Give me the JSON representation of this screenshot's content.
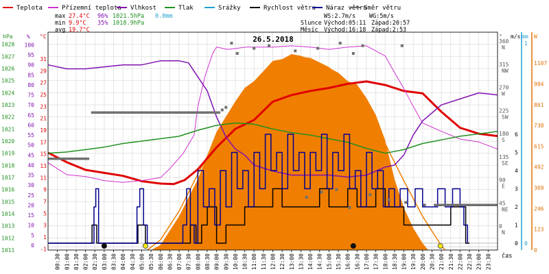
{
  "chart_data": {
    "type": "line",
    "title": "26.5.2018",
    "x_label": "čas",
    "legend": [
      {
        "label": "Teplota",
        "color": "#e00000"
      },
      {
        "label": "Přízemní teplota",
        "color": "#d030d0"
      },
      {
        "label": "Vlhkost",
        "color": "#8010b0"
      },
      {
        "label": "Tlak",
        "color": "#209020"
      },
      {
        "label": "Srážky",
        "color": "#20a0d0"
      },
      {
        "label": "Rychlost větru",
        "color": "#000000"
      },
      {
        "label": "Náraz větru",
        "color": "#000090"
      },
      {
        "label": "Směr větru",
        "color": "#707070"
      }
    ],
    "stats": [
      {
        "label": "max",
        "temp": "27.4°C",
        "hum": "96%",
        "press": "1021.5hPa",
        "rain": "0.0mm"
      },
      {
        "label": "min",
        "temp": "9.9°C",
        "hum": "35%",
        "press": "1018.9hPa",
        "rain": ""
      },
      {
        "label": "avg",
        "temp": "19.7°C",
        "hum": "",
        "press": "",
        "rain": ""
      }
    ],
    "info": {
      "ws": "WS:2.7m/s",
      "wg": "WG:5m/s",
      "sun_label": "Slunce",
      "sun_rise": "Východ:05:11",
      "sun_set": "Západ:20:57",
      "moon_label": "Měsíc",
      "moon_rise": "Východ:16:18",
      "moon_set": "Západ:2:53"
    },
    "axes": {
      "hpa": {
        "unit": "hPa",
        "color": "#209020",
        "range": [
          1011,
          1029
        ],
        "ticks": [
          1011,
          1012,
          1013,
          1014,
          1015,
          1016,
          1017,
          1018,
          1019,
          1020,
          1021,
          1022,
          1023,
          1024,
          1025,
          1026,
          1027,
          1028
        ]
      },
      "pct": {
        "unit": "%",
        "color": "#8010b0",
        "range": [
          -2.4,
          106.3
        ],
        "ticks": [
          0,
          5,
          10,
          15,
          20,
          25,
          30,
          35,
          40,
          45,
          50,
          55,
          60,
          65,
          70,
          75,
          80,
          85,
          90,
          95,
          100
        ]
      },
      "temp": {
        "unit": "°C",
        "color": "#e00000",
        "range": [
          -1.2,
          35.5
        ],
        "ticks": [
          -1,
          1,
          3,
          5,
          7,
          9,
          11,
          13,
          15,
          17,
          19,
          21,
          23,
          25,
          27,
          29,
          31
        ]
      },
      "dir": {
        "unit": "°",
        "color": "#555555",
        "ticks": [
          {
            "v": 0,
            "lab": "0",
            "dir": "N"
          },
          {
            "v": 45,
            "lab": "45",
            "dir": "NE"
          },
          {
            "v": 90,
            "lab": "90",
            "dir": "E"
          },
          {
            "v": 135,
            "lab": "135",
            "dir": "SE"
          },
          {
            "v": 180,
            "lab": "180",
            "dir": "S"
          },
          {
            "v": 225,
            "lab": "225",
            "dir": "SW"
          },
          {
            "v": 270,
            "lab": "270",
            "dir": "W"
          },
          {
            "v": 315,
            "lab": "315",
            "dir": "NW"
          },
          {
            "v": 360,
            "lab": "360",
            "dir": "N"
          }
        ]
      },
      "ms": {
        "unit": "m/s",
        "color": "#000000",
        "ticks": [
          0,
          1,
          2,
          3,
          4,
          5,
          6
        ]
      },
      "mm": {
        "unit": "mm",
        "color": "#20a0d0",
        "ticks": [
          0,
          1
        ]
      },
      "wm2": {
        "unit": "W",
        "color": "#e07000",
        "range": [
          0,
          1290
        ],
        "ticks": [
          0,
          123,
          246,
          369,
          492,
          615,
          738,
          861,
          984,
          1107
        ]
      }
    },
    "x_ticks": [
      "00:30",
      "01:00",
      "01:30",
      "02:00",
      "02:30",
      "03:00",
      "03:30",
      "04:00",
      "04:30",
      "05:00",
      "05:30",
      "06:00",
      "06:30",
      "07:00",
      "07:30",
      "08:00",
      "08:30",
      "09:00",
      "09:30",
      "10:00",
      "10:30",
      "11:00",
      "11:30",
      "12:00",
      "12:30",
      "13:00",
      "13:30",
      "14:00",
      "14:30",
      "15:00",
      "15:30",
      "16:00",
      "16:30",
      "17:00",
      "17:30",
      "18:00",
      "18:30",
      "19:00",
      "19:30",
      "20:00",
      "20:30",
      "21:00",
      "21:30",
      "22:00",
      "22:30",
      "23:00",
      "23:30"
    ],
    "series": [
      {
        "name": "Teplota",
        "axis": "temp",
        "color": "#e00000",
        "x": [
          0,
          1,
          2,
          3,
          4,
          5,
          6,
          6.7,
          7.3,
          8,
          9,
          10,
          11,
          12,
          13,
          14,
          15,
          16,
          17,
          18,
          19,
          20,
          21,
          22,
          23,
          24
        ],
        "y": [
          15.2,
          13.6,
          12.3,
          11.8,
          11.3,
          10.4,
          10.0,
          9.9,
          10.6,
          12.4,
          16.1,
          19.2,
          20.7,
          23.8,
          24.9,
          25.6,
          26.1,
          26.8,
          27.2,
          26.6,
          25.6,
          25.2,
          22.1,
          19.4,
          18.4,
          18.0
        ]
      },
      {
        "name": "Přízemní teplota",
        "axis": "temp",
        "color": "#d030d0",
        "x": [
          0,
          1,
          2,
          3,
          4,
          5,
          6,
          6.5,
          7.2,
          7.8,
          8,
          8.4,
          8.8,
          9,
          9.6,
          10.6,
          12,
          13,
          14,
          15,
          16,
          17,
          18,
          18.5,
          19,
          19.5,
          20,
          21,
          22,
          23,
          24
        ],
        "y": [
          13.5,
          11.5,
          11.2,
          10.5,
          10.2,
          10.5,
          11.0,
          12.5,
          15.0,
          18.2,
          23.0,
          28.3,
          32.0,
          33.0,
          32.6,
          33.0,
          33.0,
          33.2,
          33.0,
          32.6,
          33.0,
          33.2,
          31.5,
          28.7,
          26.0,
          23.0,
          20.2,
          18.8,
          17.5,
          17.0,
          15.8
        ]
      },
      {
        "name": "Vlhkost",
        "axis": "pct",
        "color": "#8010b0",
        "x": [
          0,
          1,
          2,
          3,
          4,
          5,
          6,
          7,
          7.5,
          8,
          8.5,
          9,
          9.5,
          10,
          10.5,
          11,
          12,
          13,
          14,
          15,
          16,
          17,
          18,
          18.5,
          19,
          19.5,
          20,
          21,
          22,
          23,
          24
        ],
        "y": [
          90,
          88,
          88,
          89,
          90,
          90,
          92,
          92,
          91,
          84,
          77,
          64,
          54,
          48,
          45,
          40,
          37,
          35,
          35,
          35,
          34,
          35,
          39,
          40,
          45,
          55,
          62,
          70,
          73,
          76,
          75
        ]
      },
      {
        "name": "Tlak",
        "axis": "hpa",
        "color": "#209020",
        "x": [
          0,
          1,
          2,
          3,
          4,
          5,
          6,
          7,
          8,
          9,
          10,
          11,
          12,
          13,
          14,
          15,
          16,
          17,
          18,
          19,
          20,
          21,
          22,
          23,
          24
        ],
        "y": [
          1019.0,
          1019.1,
          1019.3,
          1019.5,
          1019.8,
          1020.0,
          1020.2,
          1020.4,
          1020.9,
          1021.3,
          1021.5,
          1021.4,
          1021.0,
          1020.7,
          1020.5,
          1020.2,
          1019.9,
          1019.4,
          1019.0,
          1019.3,
          1019.8,
          1020.1,
          1020.4,
          1020.6,
          1020.8
        ]
      },
      {
        "name": "Rychlost větru",
        "axis": "ms",
        "color": "#000000",
        "x": [
          0,
          2.2,
          2.35,
          2.5,
          2.6,
          4.6,
          4.8,
          5.0,
          5.2,
          7.3,
          7.6,
          7.9,
          8.2,
          8.5,
          9.0,
          9.5,
          10.0,
          10.5,
          11.0,
          11.5,
          12.0,
          12.5,
          13.0,
          13.5,
          14.0,
          14.5,
          15.0,
          15.5,
          16.0,
          16.5,
          17.0,
          17.5,
          18.0,
          18.5,
          19.0,
          19.5,
          20.0,
          20.5,
          21.0,
          21.5,
          22.0,
          22.3,
          22.5
        ],
        "y": [
          0,
          0,
          1,
          1,
          0,
          0,
          1,
          1,
          0,
          0,
          1,
          0,
          1,
          2,
          0,
          1,
          1,
          2,
          2,
          2,
          3,
          2,
          2,
          2,
          2,
          3,
          2,
          2,
          3,
          2,
          2,
          3,
          2,
          2,
          1,
          1,
          1,
          1,
          1,
          2,
          2,
          0,
          0
        ]
      },
      {
        "name": "Náraz větru",
        "axis": "ms",
        "color": "#000090",
        "x": [
          0,
          2.3,
          2.45,
          2.55,
          2.7,
          4.6,
          4.75,
          4.9,
          5.1,
          5.3,
          7.0,
          7.2,
          7.4,
          7.6,
          7.8,
          8.0,
          8.3,
          8.6,
          8.9,
          9.2,
          9.5,
          9.8,
          10.1,
          10.4,
          10.7,
          11.0,
          11.3,
          11.6,
          11.9,
          12.2,
          12.5,
          12.8,
          13.1,
          13.4,
          13.7,
          14.0,
          14.3,
          14.6,
          14.9,
          15.2,
          15.5,
          15.8,
          16.1,
          16.4,
          16.7,
          17.0,
          17.3,
          17.6,
          17.9,
          18.2,
          18.5,
          18.8,
          19.2,
          19.6,
          20.0,
          20.4,
          20.8,
          21.2,
          21.6,
          22.0,
          22.2,
          22.4
        ],
        "y": [
          0,
          0,
          2,
          3,
          0,
          0,
          2,
          3,
          1,
          0,
          0,
          1,
          3,
          1,
          0,
          4,
          2,
          3,
          1,
          4,
          2,
          5,
          3,
          4,
          2,
          5,
          3,
          6,
          4,
          5,
          3,
          6,
          4,
          5,
          3,
          5,
          4,
          6,
          3,
          5,
          4,
          6,
          3,
          4,
          2,
          5,
          3,
          4,
          2,
          3,
          2,
          3,
          2,
          3,
          2,
          2,
          3,
          2,
          3,
          2,
          1,
          0
        ]
      },
      {
        "name": "Směr větru",
        "axis": "dir",
        "color": "#707070",
        "segments": [
          {
            "x0": 0,
            "x1": 2.2,
            "y": 135
          },
          {
            "x0": 2.3,
            "x1": 9.2,
            "y": 225
          },
          {
            "x0": 20.6,
            "x1": 24,
            "y": 45
          }
        ],
        "points": [
          {
            "x": 9.3,
            "y": 230
          },
          {
            "x": 9.5,
            "y": 235
          },
          {
            "x": 9.8,
            "y": 360
          },
          {
            "x": 10.1,
            "y": 340
          },
          {
            "x": 11.0,
            "y": 350
          },
          {
            "x": 11.8,
            "y": 355
          },
          {
            "x": 13.2,
            "y": 345
          },
          {
            "x": 14.4,
            "y": 350
          },
          {
            "x": 15.6,
            "y": 360
          },
          {
            "x": 16.3,
            "y": 340
          },
          {
            "x": 16.8,
            "y": 355
          },
          {
            "x": 18.9,
            "y": 355
          },
          {
            "x": 13.8,
            "y": 60
          },
          {
            "x": 14.6,
            "y": 70
          },
          {
            "x": 15.4,
            "y": 75
          },
          {
            "x": 16.1,
            "y": 40
          },
          {
            "x": 17.2,
            "y": 65
          },
          {
            "x": 18.2,
            "y": 55
          },
          {
            "x": 19.1,
            "y": 50
          },
          {
            "x": 20.1,
            "y": 45
          }
        ]
      },
      {
        "name": "Sluneční záření",
        "axis": "wm2",
        "color": "#f07e00",
        "fill": true,
        "x": [
          5.5,
          6,
          7,
          8,
          9,
          10,
          10.5,
          11,
          11.5,
          12,
          12.5,
          13,
          13.5,
          14,
          14.5,
          15,
          15.5,
          16,
          16.5,
          17,
          17.5,
          18,
          18.5,
          19,
          19.5,
          20,
          20.3
        ],
        "y": [
          0,
          30,
          200,
          420,
          700,
          880,
          960,
          1000,
          1060,
          1120,
          1130,
          1160,
          1150,
          1130,
          1110,
          1080,
          1050,
          1000,
          980,
          900,
          800,
          650,
          420,
          250,
          130,
          40,
          0
        ]
      },
      {
        "name": "Teoretické záření",
        "axis": "wm2",
        "color": "#f07e00",
        "fill": false,
        "x": [
          5.3,
          6,
          7,
          8,
          9,
          10,
          11,
          12,
          13,
          13.3,
          14,
          15,
          16,
          17,
          18,
          19,
          20,
          21,
          21.2
        ],
        "y": [
          0,
          60,
          230,
          450,
          660,
          840,
          990,
          1090,
          1140,
          1145,
          1135,
          1080,
          970,
          820,
          630,
          410,
          200,
          25,
          0
        ]
      }
    ],
    "markers": [
      {
        "x": 3.0,
        "type": "new-moon"
      },
      {
        "x": 5.2,
        "type": "sunrise"
      },
      {
        "x": 16.3,
        "type": "moonrise"
      },
      {
        "x": 20.95,
        "type": "sunset"
      }
    ]
  }
}
